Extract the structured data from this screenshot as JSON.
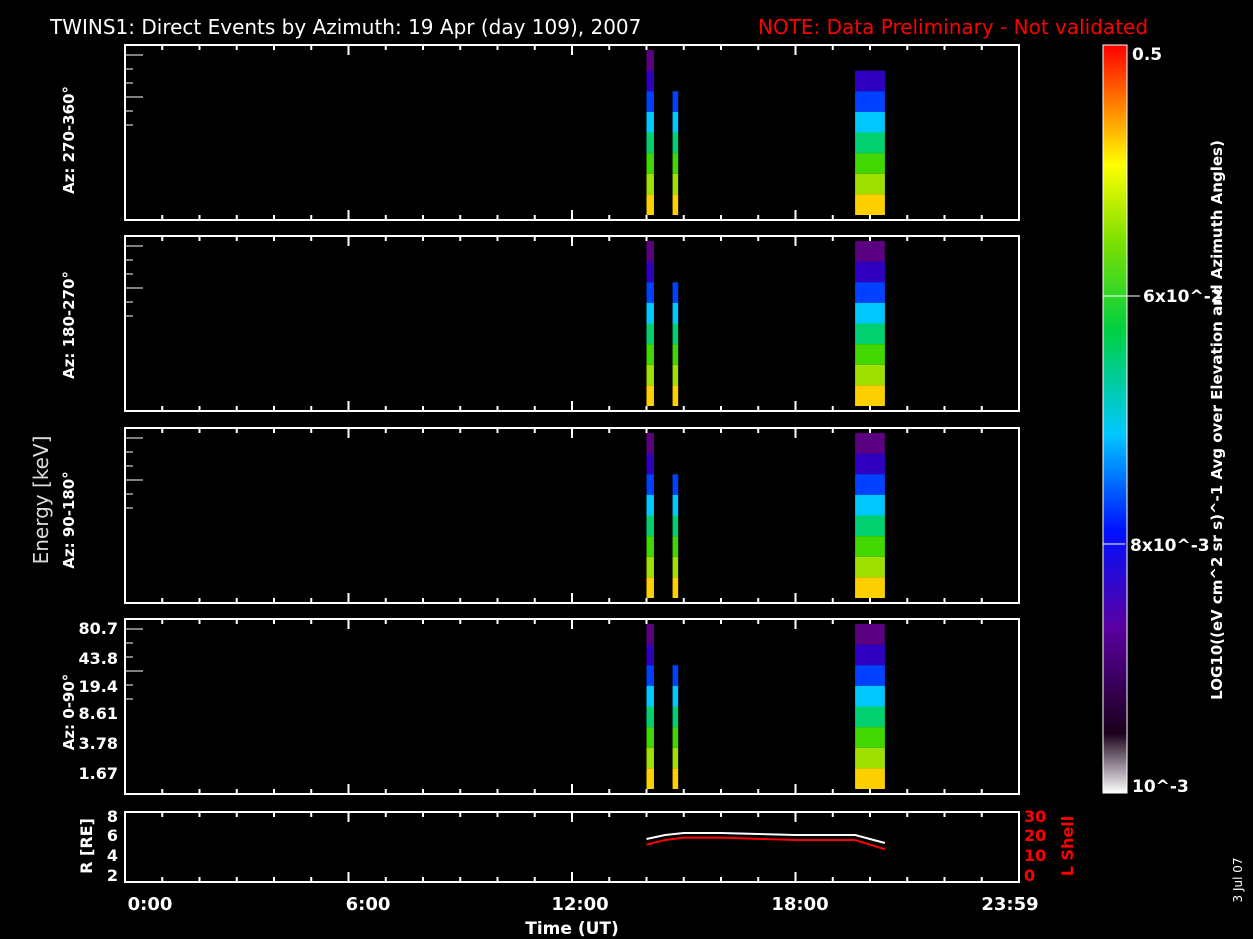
{
  "title": "TWINS1: Direct Events by Azimuth: 19 Apr (day 109), 2007",
  "note": "NOTE: Data Preliminary - Not validated",
  "note_color": "#ff0000",
  "energy_label": "Energy [keV]",
  "colorbar": {
    "top_label": "0.5",
    "mid_label_1": "6x10^-2",
    "mid_label_2": "8x10^-3",
    "bottom_label": "10^-3",
    "title": "LOG10((eV cm^2 sr s)^-1 Avg over Elevation and Azimuth Angles)"
  },
  "date_stamp": "3 Jul 07",
  "panels": [
    {
      "label": "Az: 270-360°"
    },
    {
      "label": "Az: 180-270°"
    },
    {
      "label": "Az: 90-180°"
    },
    {
      "label": "Az: 0-90°"
    }
  ],
  "energy_ticks": [
    "80.7",
    "43.8",
    "19.4",
    "8.61",
    "3.78",
    "1.67"
  ],
  "orbit": {
    "left_label": "R [RE]",
    "right_label": "L Shell",
    "left_ticks": [
      "8",
      "6",
      "4",
      "2"
    ],
    "right_ticks": [
      "30",
      "20",
      "10",
      "0"
    ],
    "right_color": "#ff0000"
  },
  "x_axis": {
    "ticks": [
      "0:00",
      "6:00",
      "12:00",
      "18:00",
      "23:59"
    ],
    "label": "Time (UT)"
  },
  "chart_data": {
    "type": "heatmap",
    "x_range_hours": [
      0,
      24
    ],
    "event_windows_hours": [
      [
        14.0,
        14.2
      ],
      [
        14.7,
        14.85
      ],
      [
        19.6,
        20.4
      ]
    ],
    "orbit_R": {
      "x": [
        14.0,
        14.5,
        15.0,
        16.0,
        17.0,
        18.0,
        19.0,
        19.6,
        20.0,
        20.4
      ],
      "y": [
        5.8,
        6.2,
        6.4,
        6.4,
        6.3,
        6.2,
        6.2,
        6.2,
        5.8,
        5.4
      ]
    },
    "orbit_L": {
      "x": [
        14.0,
        14.5,
        15.0,
        16.0,
        17.0,
        18.0,
        19.0,
        19.6,
        20.0,
        20.4
      ],
      "y": [
        16,
        18,
        19,
        19,
        18.5,
        18,
        18,
        18,
        16,
        14
      ]
    }
  }
}
